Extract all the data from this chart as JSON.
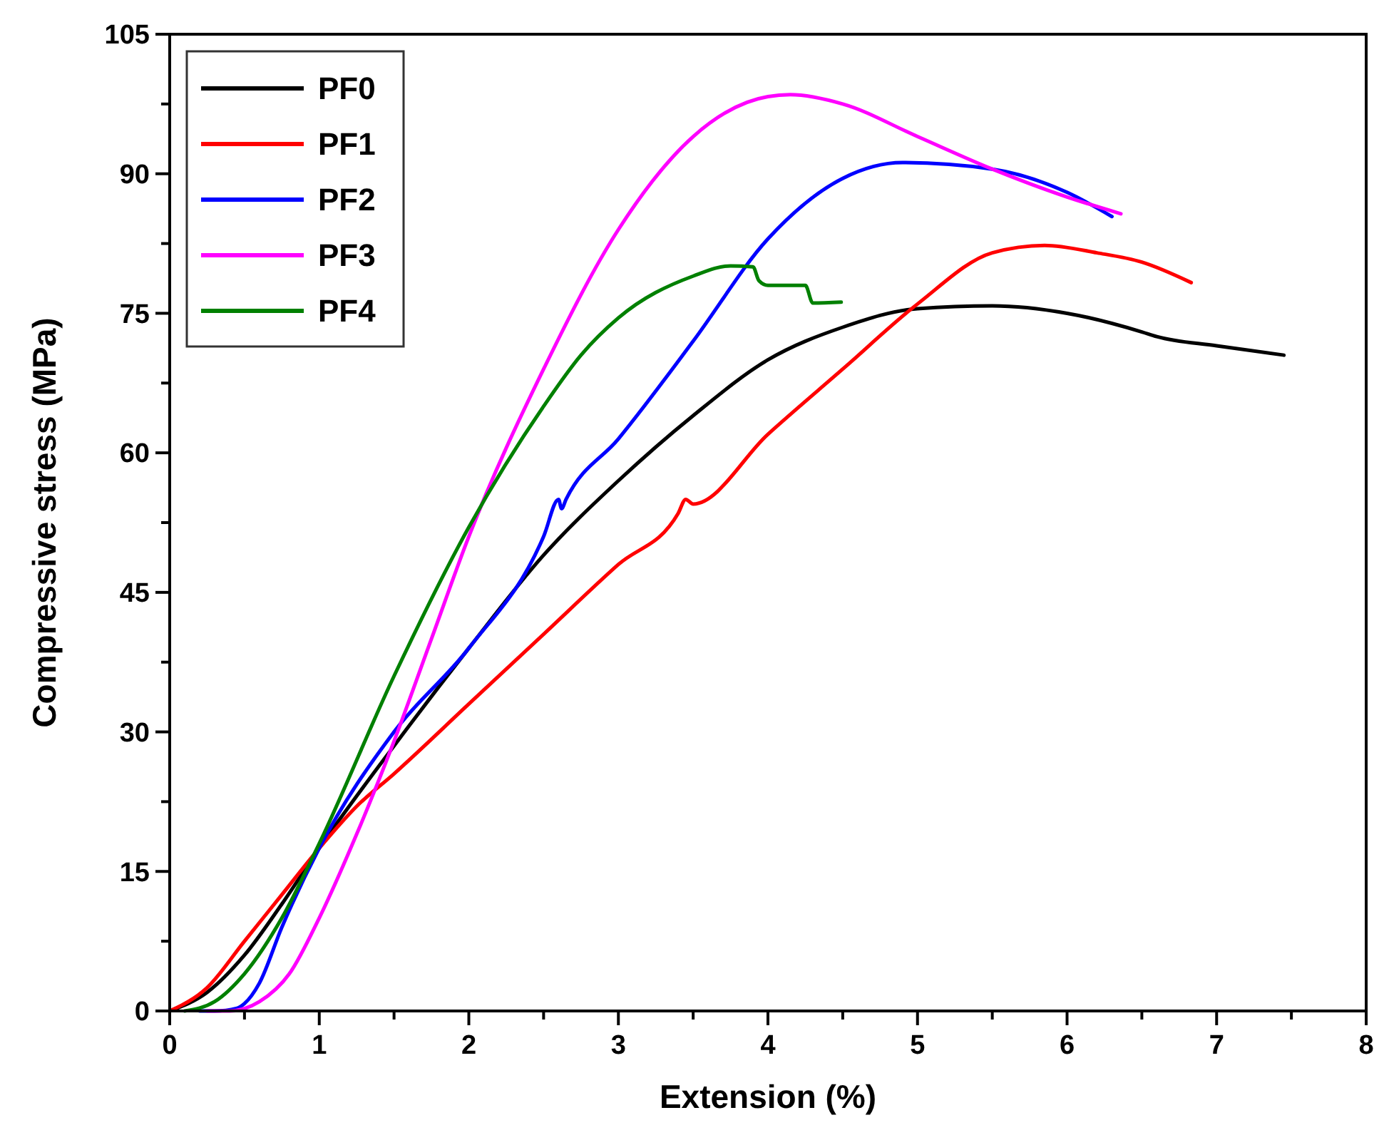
{
  "chart_data": {
    "type": "line",
    "xlabel": "Extension (%)",
    "ylabel": "Compressive stress (MPa)",
    "xlim": [
      0,
      8
    ],
    "ylim": [
      0,
      105
    ],
    "xticks": [
      0,
      {
        "value": 0.5,
        "label": null
      },
      1,
      {
        "value": 1.5,
        "label": null
      },
      2,
      {
        "value": 2.5,
        "label": null
      },
      3,
      {
        "value": 3.5,
        "label": null
      },
      4,
      {
        "value": 4.5,
        "label": null
      },
      5,
      {
        "value": 5.5,
        "label": null
      },
      6,
      {
        "value": 6.5,
        "label": null
      },
      7,
      {
        "value": 7.5,
        "label": null
      },
      8
    ],
    "yticks": [
      0,
      {
        "value": 7.5,
        "label": null
      },
      15,
      {
        "value": 22.5,
        "label": null
      },
      30,
      {
        "value": 37.5,
        "label": null
      },
      45,
      {
        "value": 52.5,
        "label": null
      },
      60,
      {
        "value": 67.5,
        "label": null
      },
      75,
      {
        "value": 82.5,
        "label": null
      },
      90,
      {
        "value": 97.5,
        "label": null
      },
      105
    ],
    "grid": false,
    "legend": "top left",
    "marker": "none",
    "line_style": "solid",
    "series": [
      {
        "name": "PF0",
        "color": "#000000",
        "x": [
          0,
          0.25,
          0.5,
          0.75,
          1,
          1.5,
          2,
          2.5,
          3,
          3.5,
          4,
          4.5,
          5,
          5.5,
          6,
          6.5,
          6.6,
          7,
          7.45
        ],
        "values": [
          0,
          2,
          6,
          11.5,
          17.5,
          28.5,
          39,
          49,
          57,
          64,
          70,
          73.5,
          75.5,
          75.8,
          75,
          73,
          72.5,
          71.5,
          70.5
        ]
      },
      {
        "name": "PF1",
        "color": "#ff0000",
        "x": [
          0,
          0.25,
          0.5,
          0.75,
          1,
          1.25,
          1.5,
          2,
          2.5,
          3,
          3.4,
          3.45,
          3.5,
          4,
          4.5,
          5,
          5.5,
          5.85,
          6.2,
          6.5,
          6.83
        ],
        "values": [
          0,
          2.5,
          7.5,
          12.5,
          17.5,
          22,
          25.5,
          33,
          40.5,
          48,
          53.5,
          55,
          54.5,
          62,
          69,
          76,
          81.5,
          82.3,
          81.5,
          80.5,
          78.3
        ]
      },
      {
        "name": "PF2",
        "color": "#0000ff",
        "x": [
          0.2,
          0.3,
          0.45,
          0.5,
          0.6,
          0.75,
          1,
          1.5,
          2,
          2.5,
          2.6,
          2.62,
          2.65,
          3,
          3.5,
          4,
          4.5,
          4.9,
          5.5,
          6,
          6.3
        ],
        "values": [
          0,
          0,
          0.3,
          0.8,
          3,
          9,
          17.5,
          30,
          39,
          51,
          55,
          54,
          55,
          61.5,
          72,
          83,
          89.5,
          91.2,
          90.5,
          88,
          85.4
        ]
      },
      {
        "name": "PF3",
        "color": "#ff00ff",
        "x": [
          0.25,
          0.4,
          0.6,
          0.8,
          1,
          1.25,
          1.5,
          1.75,
          2,
          2.5,
          3,
          3.5,
          4,
          4.15,
          4.5,
          5,
          5.5,
          6,
          6.36
        ],
        "values": [
          0,
          0,
          1,
          4,
          10,
          19,
          29,
          40,
          51,
          69,
          84,
          94,
          98.3,
          98.5,
          97.5,
          94,
          90.5,
          87.5,
          85.7
        ]
      },
      {
        "name": "PF4",
        "color": "#008000",
        "x": [
          0.1,
          0.3,
          0.5,
          0.75,
          1,
          1.5,
          2,
          2.5,
          2.75,
          3,
          3.5,
          3.75,
          3.9,
          3.94,
          4,
          4.25,
          4.3,
          4.49
        ],
        "values": [
          0,
          1,
          4,
          10,
          18,
          36,
          52,
          65,
          70.5,
          74.5,
          79,
          80.1,
          80,
          78.5,
          78,
          78,
          76.1,
          76.2
        ]
      }
    ]
  }
}
